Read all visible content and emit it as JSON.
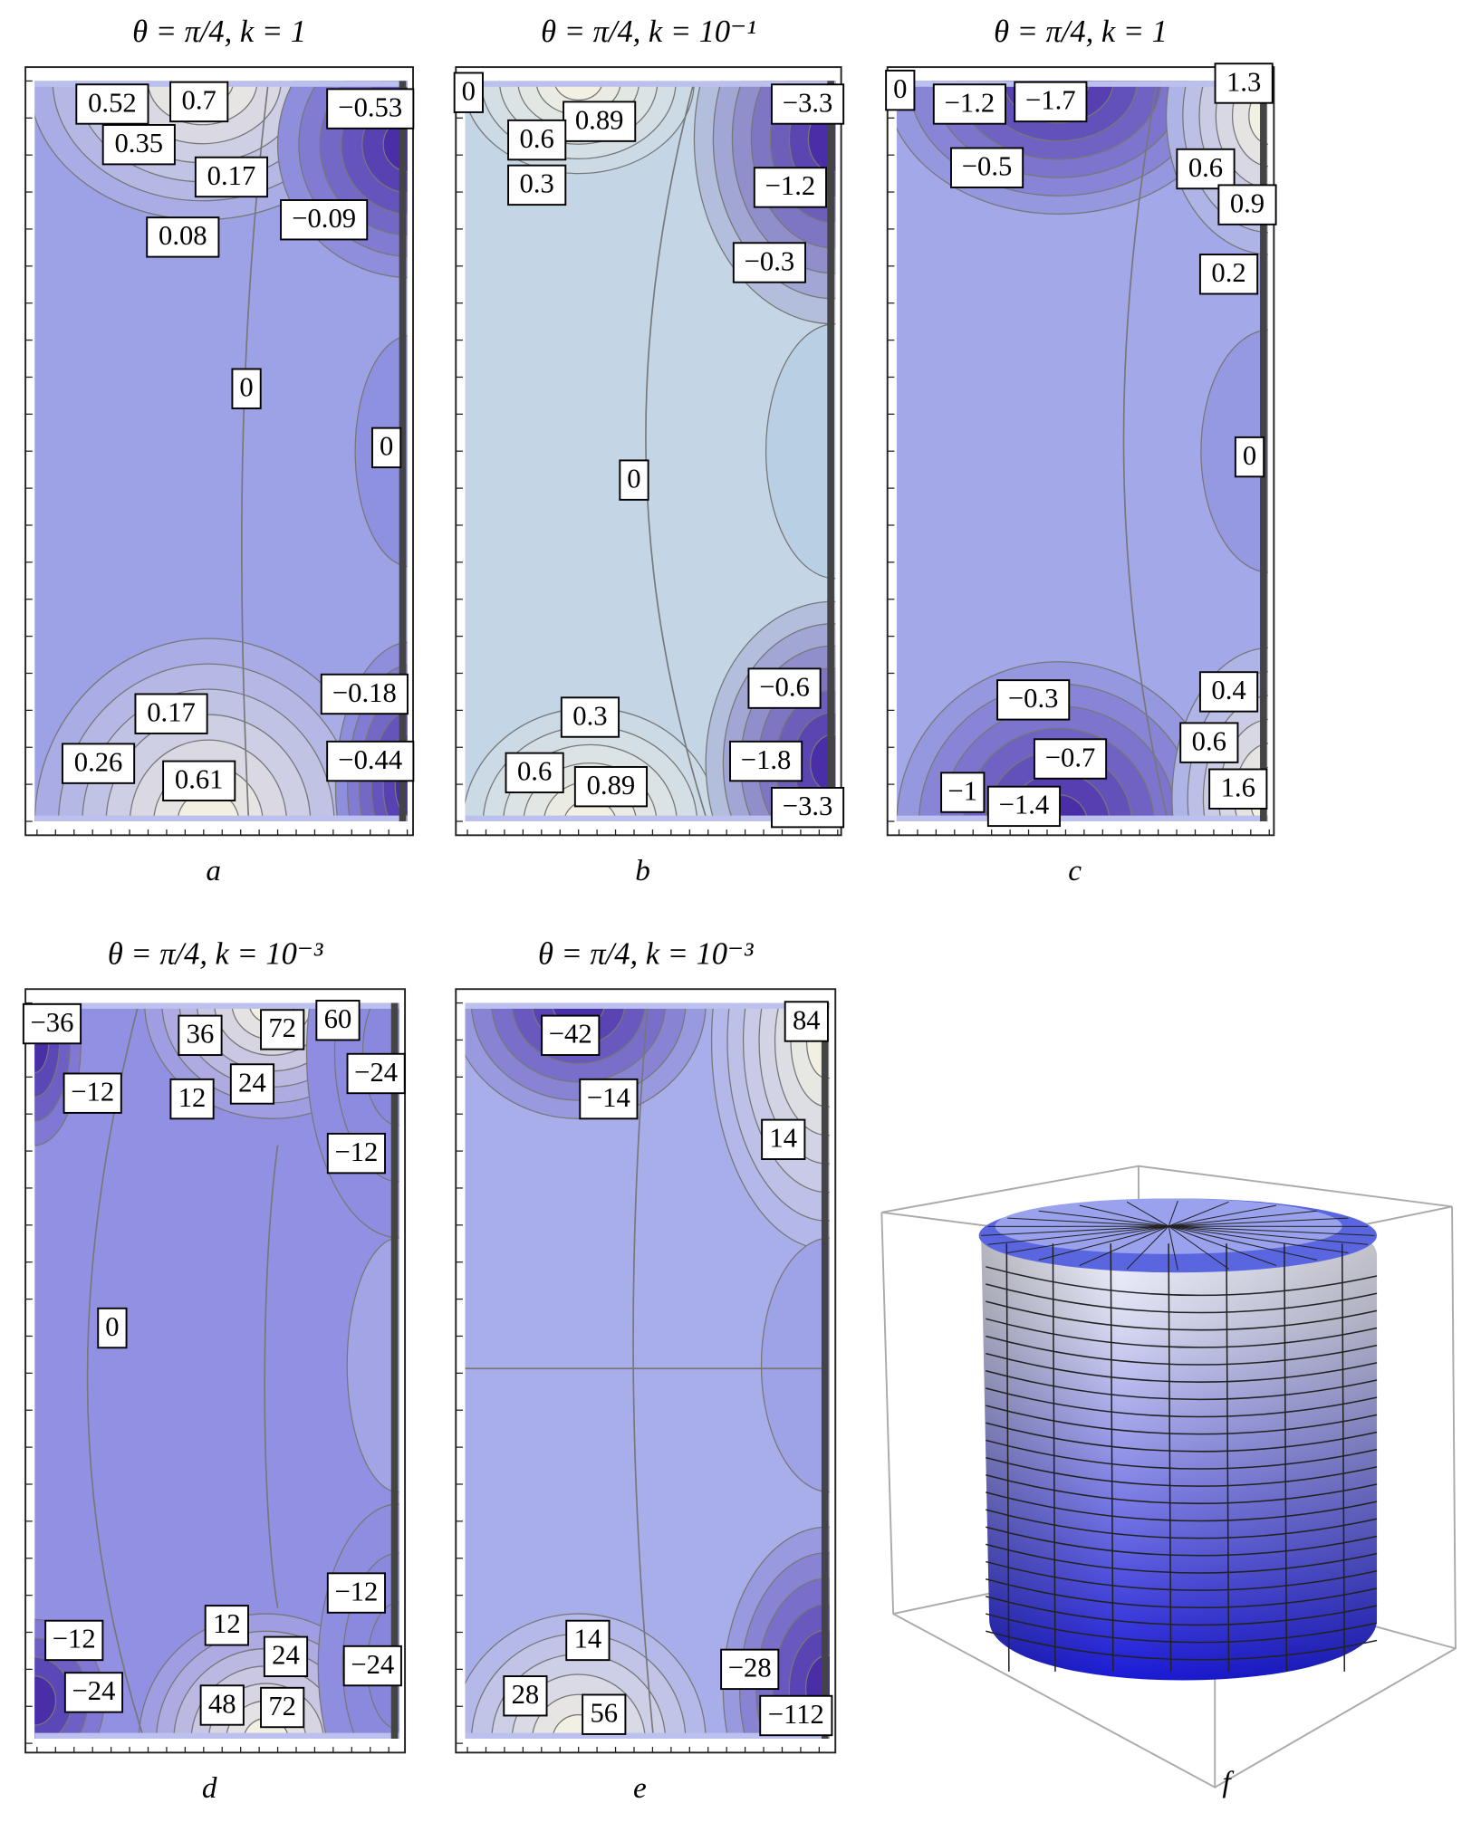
{
  "panels": [
    {
      "title": "θ = π/4, k = 1",
      "caption": "a",
      "labels": [
        "0.52",
        "0.7",
        "−0.53",
        "0.35",
        "0.17",
        "0.08",
        "−0.09",
        "0",
        "0",
        "−0.18",
        "0.17",
        "0.26",
        "−0.44",
        "0.61"
      ]
    },
    {
      "title": "θ = π/4, k = 10⁻¹",
      "caption": "b",
      "labels": [
        "0",
        "0.89",
        "−3.3",
        "0.6",
        "0.3",
        "−1.2",
        "−0.3",
        "0",
        "−0.6",
        "0.3",
        "−1.8",
        "0.6",
        "0.89",
        "−3.3"
      ]
    },
    {
      "title": "θ = π/4, k = 1",
      "caption": "c",
      "labels": [
        "0",
        "−1.2",
        "−1.7",
        "1.3",
        "−0.5",
        "0.6",
        "0.9",
        "0.2",
        "0",
        "−0.3",
        "0.4",
        "−0.7",
        "0.6",
        "−1",
        "−1.4",
        "1.6"
      ]
    },
    {
      "title": "θ = π/4, k = 10⁻³",
      "caption": "d",
      "labels": [
        "−36",
        "36",
        "72",
        "60",
        "−24",
        "−12",
        "24",
        "12",
        "−12",
        "0",
        "−12",
        "12",
        "−12",
        "24",
        "−24",
        "−24",
        "48",
        "72"
      ]
    },
    {
      "title": "θ = π/4, k = 10⁻³",
      "caption": "e",
      "labels": [
        "−42",
        "84",
        "−14",
        "14",
        "14",
        "−28",
        "28",
        "56",
        "−112"
      ]
    }
  ],
  "figure_f": {
    "caption": "f"
  }
}
